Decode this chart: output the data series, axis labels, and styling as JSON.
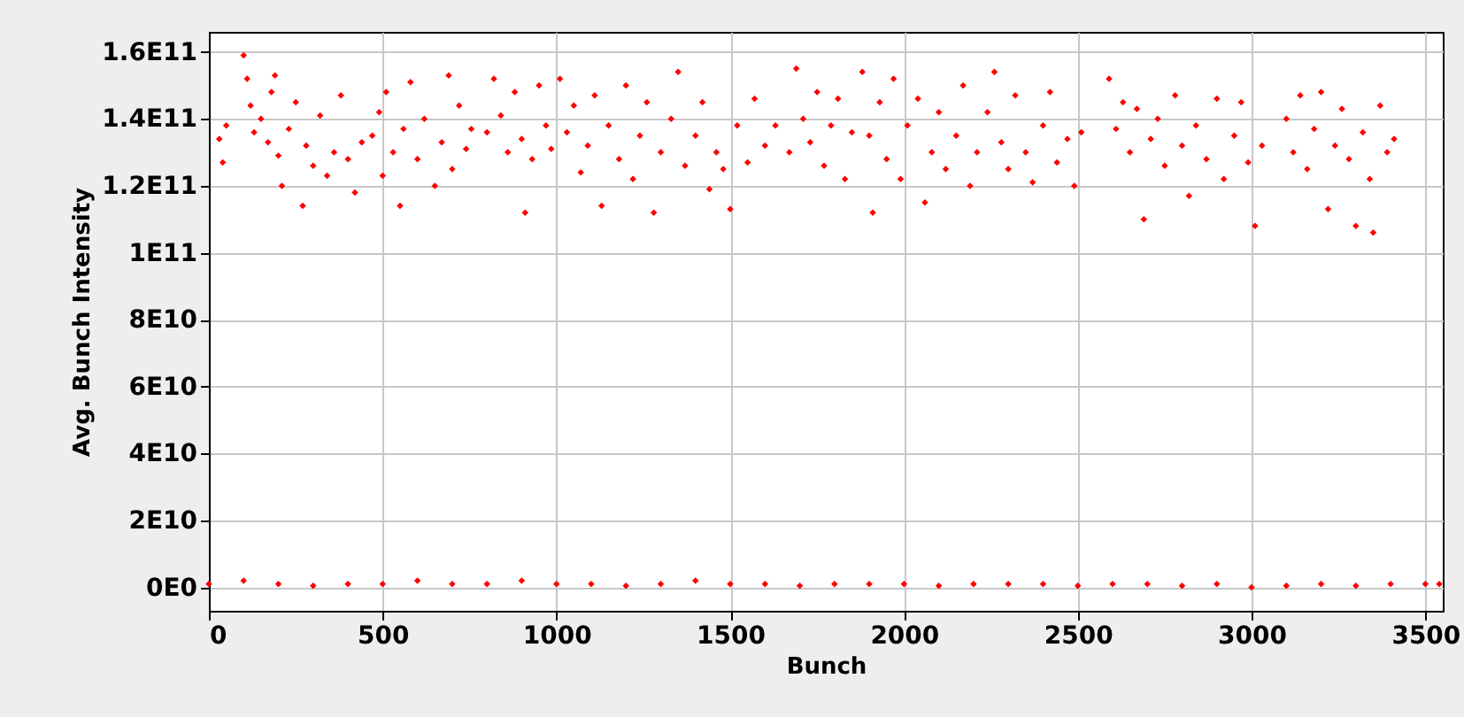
{
  "chart_data": {
    "type": "scatter",
    "xlabel": "Bunch",
    "ylabel": "Avg. Bunch Intensity",
    "x": [
      30,
      40,
      50,
      100,
      110,
      120,
      130,
      150,
      170,
      180,
      190,
      200,
      210,
      230,
      250,
      270,
      280,
      300,
      320,
      340,
      360,
      380,
      400,
      420,
      440,
      470,
      490,
      500,
      510,
      530,
      550,
      560,
      580,
      600,
      620,
      650,
      670,
      690,
      700,
      720,
      740,
      755,
      800,
      820,
      840,
      860,
      880,
      900,
      910,
      930,
      950,
      970,
      985,
      1010,
      1030,
      1050,
      1070,
      1090,
      1110,
      1130,
      1150,
      1180,
      1200,
      1220,
      1240,
      1260,
      1280,
      1300,
      1330,
      1350,
      1370,
      1400,
      1420,
      1440,
      1460,
      1480,
      1500,
      1520,
      1550,
      1570,
      1600,
      1630,
      1670,
      1690,
      1710,
      1730,
      1750,
      1770,
      1790,
      1810,
      1830,
      1850,
      1880,
      1900,
      1910,
      1930,
      1950,
      1970,
      1990,
      2010,
      2040,
      2060,
      2080,
      2100,
      2120,
      2150,
      2170,
      2190,
      2210,
      2240,
      2260,
      2280,
      2300,
      2320,
      2350,
      2370,
      2400,
      2420,
      2440,
      2470,
      2490,
      2510,
      2590,
      2610,
      2630,
      2650,
      2670,
      2690,
      2710,
      2730,
      2750,
      2780,
      2800,
      2820,
      2840,
      2870,
      2900,
      2920,
      2950,
      2970,
      2990,
      3010,
      3030,
      3100,
      3120,
      3140,
      3160,
      3180,
      3200,
      3220,
      3240,
      3260,
      3280,
      3300,
      3320,
      3340,
      3350,
      3370,
      3390,
      3410,
      0,
      100,
      200,
      300,
      400,
      500,
      600,
      700,
      800,
      900,
      1000,
      1100,
      1200,
      1300,
      1400,
      1500,
      1600,
      1700,
      1800,
      1900,
      2000,
      2100,
      2200,
      2300,
      2400,
      2500,
      2600,
      2700,
      2800,
      2900,
      3000,
      3100,
      3200,
      3300,
      3400,
      3500,
      3540
    ],
    "values": [
      134000000000.0,
      127000000000.0,
      138000000000.0,
      159000000000.0,
      152000000000.0,
      144000000000.0,
      136000000000.0,
      140000000000.0,
      133000000000.0,
      148000000000.0,
      153000000000.0,
      129000000000.0,
      120000000000.0,
      137000000000.0,
      145000000000.0,
      114000000000.0,
      132000000000.0,
      126000000000.0,
      141000000000.0,
      123000000000.0,
      130000000000.0,
      147000000000.0,
      128000000000.0,
      118000000000.0,
      133000000000.0,
      135000000000.0,
      142000000000.0,
      123000000000.0,
      148000000000.0,
      130000000000.0,
      114000000000.0,
      137000000000.0,
      151000000000.0,
      128000000000.0,
      140000000000.0,
      120000000000.0,
      133000000000.0,
      153000000000.0,
      125000000000.0,
      144000000000.0,
      131000000000.0,
      137000000000.0,
      136000000000.0,
      152000000000.0,
      141000000000.0,
      130000000000.0,
      148000000000.0,
      134000000000.0,
      112000000000.0,
      128000000000.0,
      150000000000.0,
      138000000000.0,
      131000000000.0,
      152000000000.0,
      136000000000.0,
      144000000000.0,
      124000000000.0,
      132000000000.0,
      147000000000.0,
      114000000000.0,
      138000000000.0,
      128000000000.0,
      150000000000.0,
      122000000000.0,
      135000000000.0,
      145000000000.0,
      112000000000.0,
      130000000000.0,
      140000000000.0,
      154000000000.0,
      126000000000.0,
      135000000000.0,
      145000000000.0,
      119000000000.0,
      130000000000.0,
      125000000000.0,
      113000000000.0,
      138000000000.0,
      127000000000.0,
      146000000000.0,
      132000000000.0,
      138000000000.0,
      130000000000.0,
      155000000000.0,
      140000000000.0,
      133000000000.0,
      148000000000.0,
      126000000000.0,
      138000000000.0,
      146000000000.0,
      122000000000.0,
      136000000000.0,
      154000000000.0,
      135000000000.0,
      112000000000.0,
      145000000000.0,
      128000000000.0,
      152000000000.0,
      122000000000.0,
      138000000000.0,
      146000000000.0,
      115000000000.0,
      130000000000.0,
      142000000000.0,
      125000000000.0,
      135000000000.0,
      150000000000.0,
      120000000000.0,
      130000000000.0,
      142000000000.0,
      154000000000.0,
      133000000000.0,
      125000000000.0,
      147000000000.0,
      130000000000.0,
      121000000000.0,
      138000000000.0,
      148000000000.0,
      127000000000.0,
      134000000000.0,
      120000000000.0,
      136000000000.0,
      152000000000.0,
      137000000000.0,
      145000000000.0,
      130000000000.0,
      143000000000.0,
      110000000000.0,
      134000000000.0,
      140000000000.0,
      126000000000.0,
      147000000000.0,
      132000000000.0,
      117000000000.0,
      138000000000.0,
      128000000000.0,
      146000000000.0,
      122000000000.0,
      135000000000.0,
      145000000000.0,
      127000000000.0,
      108000000000.0,
      132000000000.0,
      140000000000.0,
      130000000000.0,
      147000000000.0,
      125000000000.0,
      137000000000.0,
      148000000000.0,
      113000000000.0,
      132000000000.0,
      143000000000.0,
      128000000000.0,
      108000000000.0,
      136000000000.0,
      122000000000.0,
      106000000000.0,
      144000000000.0,
      130000000000.0,
      134000000000.0,
      1000000000.0,
      2000000000.0,
      1000000000.0,
      500000000.0,
      1000000000.0,
      1000000000.0,
      2000000000.0,
      1000000000.0,
      1000000000.0,
      2000000000.0,
      1000000000.0,
      1000000000.0,
      500000000.0,
      1000000000.0,
      2000000000.0,
      1000000000.0,
      1000000000.0,
      500000000.0,
      1000000000.0,
      1000000000.0,
      1000000000.0,
      500000000.0,
      1000000000.0,
      1000000000.0,
      1000000000.0,
      500000000.0,
      1000000000.0,
      1000000000.0,
      500000000.0,
      1000000000.0,
      0,
      500000000.0,
      1000000000.0,
      500000000.0,
      1000000000.0,
      1000000000.0,
      1000000000.0
    ],
    "color": "#ff0000",
    "marker": "diamond",
    "grid": true,
    "xlim": [
      0,
      3550
    ],
    "xticks": [
      0,
      500,
      1000,
      1500,
      2000,
      2500,
      3000,
      3500
    ],
    "ylim": [
      -7000000000.0,
      166000000000.0
    ],
    "yticks": [
      {
        "value": 0,
        "label": "0E0"
      },
      {
        "value": 20000000000.0,
        "label": "2E10"
      },
      {
        "value": 40000000000.0,
        "label": "4E10"
      },
      {
        "value": 60000000000.0,
        "label": "6E10"
      },
      {
        "value": 80000000000.0,
        "label": "8E10"
      },
      {
        "value": 100000000000.0,
        "label": "1E11"
      },
      {
        "value": 120000000000.0,
        "label": "1.2E11"
      },
      {
        "value": 140000000000.0,
        "label": "1.4E11"
      },
      {
        "value": 160000000000.0,
        "label": "1.6E11"
      }
    ]
  }
}
